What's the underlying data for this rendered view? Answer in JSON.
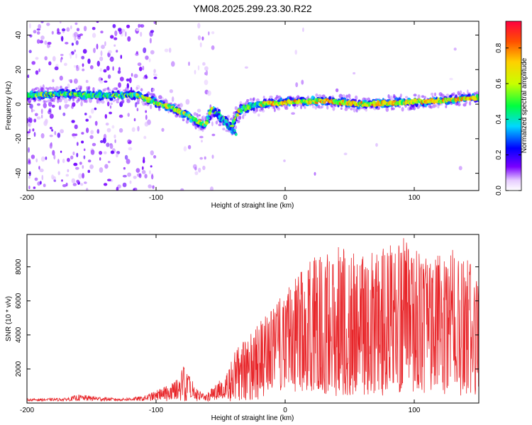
{
  "title": "YM08.2025.299.23.30.R22",
  "chart_data": [
    {
      "type": "heatmap",
      "xlabel": "Height of straight line (km)",
      "ylabel": "Frequency (Hz)",
      "xlim": [
        -200,
        150
      ],
      "ylim": [
        -50,
        48
      ],
      "xticks": [
        -200,
        -100,
        0,
        100
      ],
      "xtick_labels": [
        "-200",
        "-100",
        "0",
        "100"
      ],
      "yticks": [
        -40,
        -20,
        0,
        20,
        40
      ],
      "ytick_labels": [
        "-40",
        "-20",
        "0",
        "20",
        "40"
      ],
      "colorbar": {
        "label": "Normalized spectral amplitude",
        "range": [
          0,
          0.95
        ],
        "ticks": [
          0,
          0.2,
          0.4,
          0.6,
          0.8
        ],
        "tick_labels": [
          "0.0",
          "0.2",
          "0.4",
          "0.6",
          "0.8"
        ]
      },
      "ridge_points": [
        {
          "x": -200,
          "y": 5
        },
        {
          "x": -170,
          "y": 6
        },
        {
          "x": -140,
          "y": 5
        },
        {
          "x": -115,
          "y": 5
        },
        {
          "x": -100,
          "y": 1
        },
        {
          "x": -85,
          "y": -3
        },
        {
          "x": -70,
          "y": -9
        },
        {
          "x": -62,
          "y": -12
        },
        {
          "x": -57,
          "y": -3
        },
        {
          "x": -50,
          "y": -7
        },
        {
          "x": -42,
          "y": -14
        },
        {
          "x": -35,
          "y": -3
        },
        {
          "x": -20,
          "y": 0
        },
        {
          "x": 0,
          "y": 1
        },
        {
          "x": 30,
          "y": 2
        },
        {
          "x": 60,
          "y": 0
        },
        {
          "x": 90,
          "y": 1
        },
        {
          "x": 120,
          "y": 2
        },
        {
          "x": 150,
          "y": 4
        }
      ]
    },
    {
      "type": "line",
      "xlabel": "Height of straight line (km)",
      "ylabel": "SNR (10 * v/v)",
      "xlim": [
        -200,
        150
      ],
      "ylim": [
        0,
        9900
      ],
      "xticks": [
        -200,
        -100,
        0,
        100
      ],
      "xtick_labels": [
        "-200",
        "-100",
        "0",
        "100"
      ],
      "yticks": [
        2000,
        4000,
        6000,
        8000
      ],
      "ytick_labels": [
        "2000",
        "4000",
        "6000",
        "8000"
      ],
      "color": "#e8262a",
      "envelope": [
        {
          "x": -200,
          "y": 250
        },
        {
          "x": -170,
          "y": 300
        },
        {
          "x": -160,
          "y": 500
        },
        {
          "x": -130,
          "y": 280
        },
        {
          "x": -110,
          "y": 400
        },
        {
          "x": -95,
          "y": 900
        },
        {
          "x": -85,
          "y": 1300
        },
        {
          "x": -78,
          "y": 2400
        },
        {
          "x": -70,
          "y": 1000
        },
        {
          "x": -62,
          "y": 450
        },
        {
          "x": -45,
          "y": 1800
        },
        {
          "x": -38,
          "y": 3200
        },
        {
          "x": -25,
          "y": 4200
        },
        {
          "x": -12,
          "y": 5500
        },
        {
          "x": 0,
          "y": 6500
        },
        {
          "x": 10,
          "y": 7500
        },
        {
          "x": 20,
          "y": 8500
        },
        {
          "x": 40,
          "y": 9200
        },
        {
          "x": 60,
          "y": 8800
        },
        {
          "x": 90,
          "y": 9800
        },
        {
          "x": 110,
          "y": 8500
        },
        {
          "x": 130,
          "y": 9000
        },
        {
          "x": 150,
          "y": 8000
        }
      ]
    }
  ]
}
